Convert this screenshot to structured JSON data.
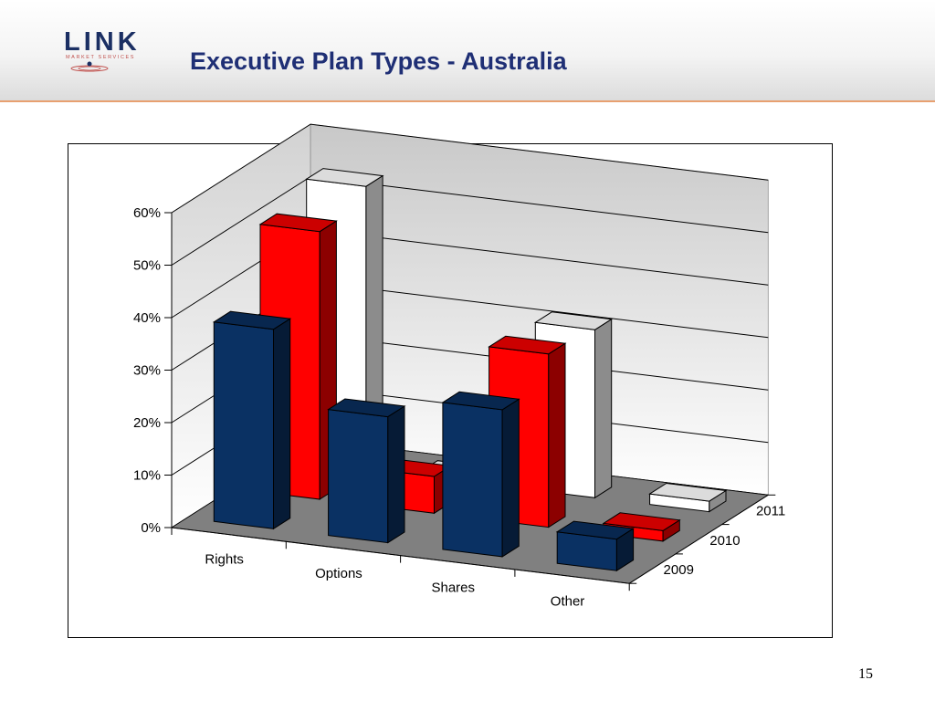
{
  "header": {
    "logo_word": "LINK",
    "logo_sub": "MARKET SERVICES",
    "title": "Executive Plan Types - Australia"
  },
  "page_number": "15",
  "colors": {
    "series_2009": "#0a3163",
    "series_2010": "#ff0000",
    "series_2011": "#ffffff",
    "floor": "#808080",
    "header_rule": "#e8a070",
    "title": "#1f2f75"
  },
  "chart_data": {
    "type": "bar",
    "style": "3d-clustered-depth",
    "title": "",
    "xlabel": "",
    "ylabel": "",
    "categories": [
      "Rights",
      "Options",
      "Shares",
      "Other"
    ],
    "series": [
      {
        "name": "2009",
        "values": [
          38,
          24,
          28,
          6
        ]
      },
      {
        "name": "2010",
        "values": [
          51,
          7,
          33,
          2
        ]
      },
      {
        "name": "2011",
        "values": [
          54,
          1,
          32,
          2
        ]
      }
    ],
    "ylim": [
      0,
      60
    ],
    "yticks": [
      "0%",
      "10%",
      "20%",
      "30%",
      "40%",
      "50%",
      "60%"
    ],
    "grid": true
  }
}
